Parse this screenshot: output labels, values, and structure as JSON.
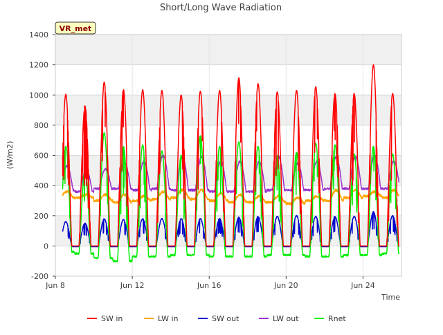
{
  "chart_data": {
    "type": "line",
    "title": "Short/Long Wave Radiation",
    "xlabel": "Time",
    "ylabel": "(W/m2)",
    "ylim": [
      -200,
      1400
    ],
    "yticks": [
      -200,
      0,
      200,
      400,
      600,
      800,
      1000,
      1200,
      1400
    ],
    "xlim": [
      "2023-06-08",
      "2023-06-26"
    ],
    "xticks": [
      {
        "date": "2023-06-08",
        "label": "Jun 8"
      },
      {
        "date": "2023-06-12",
        "label": "Jun 12"
      },
      {
        "date": "2023-06-16",
        "label": "Jun 16"
      },
      {
        "date": "2023-06-20",
        "label": "Jun 20"
      },
      {
        "date": "2023-06-24",
        "label": "Jun 24"
      }
    ],
    "data_range": [
      "2023-06-08T09:00",
      "2023-06-25T21:00"
    ],
    "annotation": "VR_met",
    "legend_position": "bottom",
    "grid": true,
    "background_bands": true,
    "sampling": "daily peak / night values per series",
    "days": [
      "Jun 8",
      "Jun 9",
      "Jun 10",
      "Jun 11",
      "Jun 12",
      "Jun 13",
      "Jun 14",
      "Jun 15",
      "Jun 16",
      "Jun 17",
      "Jun 18",
      "Jun 19",
      "Jun 20",
      "Jun 21",
      "Jun 22",
      "Jun 23",
      "Jun 24",
      "Jun 25"
    ],
    "series": [
      {
        "name": "SW in",
        "color": "#ff0000",
        "daily_peak": [
          1005,
          930,
          1085,
          1035,
          1035,
          1030,
          1000,
          1025,
          1030,
          1115,
          1075,
          1020,
          1030,
          1055,
          1010,
          1010,
          1200,
          1010
        ],
        "night": 0
      },
      {
        "name": "LW in",
        "color": "#ffa500",
        "daily_peak": [
          360,
          340,
          340,
          340,
          330,
          360,
          370,
          370,
          350,
          340,
          330,
          330,
          320,
          330,
          370,
          370,
          360,
          370
        ],
        "night": [
          320,
          320,
          300,
          290,
          300,
          310,
          320,
          310,
          300,
          290,
          290,
          290,
          280,
          300,
          300,
          320,
          330,
          320
        ]
      },
      {
        "name": "SW out",
        "color": "#0000cc",
        "daily_peak": [
          160,
          150,
          180,
          175,
          180,
          180,
          180,
          180,
          180,
          190,
          195,
          195,
          200,
          195,
          195,
          195,
          225,
          200
        ],
        "night": -5
      },
      {
        "name": "LW out",
        "color": "#9932cc",
        "daily_peak": [
          530,
          500,
          510,
          550,
          560,
          600,
          590,
          590,
          560,
          560,
          560,
          590,
          550,
          560,
          590,
          590,
          600,
          560
        ],
        "night": [
          370,
          360,
          380,
          380,
          370,
          380,
          370,
          370,
          360,
          360,
          360,
          370,
          370,
          370,
          380,
          380,
          380,
          380
        ]
      },
      {
        "name": "Rnet",
        "color": "#00ee00",
        "daily_peak": [
          660,
          500,
          750,
          660,
          670,
          630,
          600,
          730,
          660,
          690,
          660,
          600,
          620,
          680,
          670,
          610,
          660,
          610
        ],
        "night": [
          -40,
          -50,
          -80,
          -100,
          -70,
          -70,
          -60,
          -60,
          -70,
          -70,
          -70,
          -60,
          -60,
          -70,
          -70,
          -60,
          -60,
          -50
        ]
      }
    ]
  }
}
